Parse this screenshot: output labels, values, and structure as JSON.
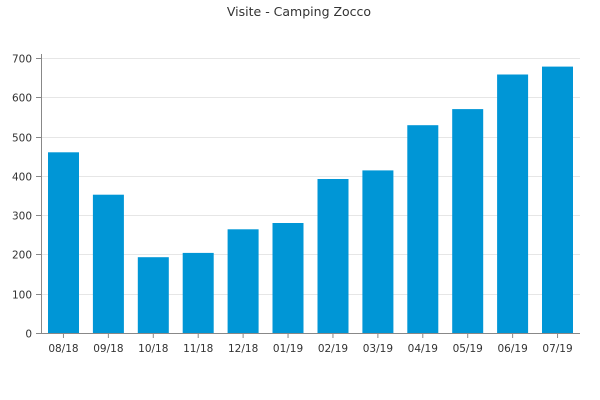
{
  "chart_data": {
    "type": "bar",
    "title": "Visite - Camping Zocco",
    "xlabel": "",
    "ylabel": "",
    "categories": [
      "08/18",
      "09/18",
      "10/18",
      "11/18",
      "12/18",
      "01/19",
      "02/19",
      "03/19",
      "04/19",
      "05/19",
      "06/19",
      "07/19"
    ],
    "values": [
      460,
      352,
      193,
      204,
      264,
      280,
      392,
      414,
      529,
      570,
      658,
      678
    ],
    "ylim": [
      0,
      700
    ],
    "yticks": [
      0,
      100,
      200,
      300,
      400,
      500,
      600,
      700
    ],
    "grid": true,
    "legend": "none",
    "colors": {
      "bar": "#0096d6"
    }
  }
}
